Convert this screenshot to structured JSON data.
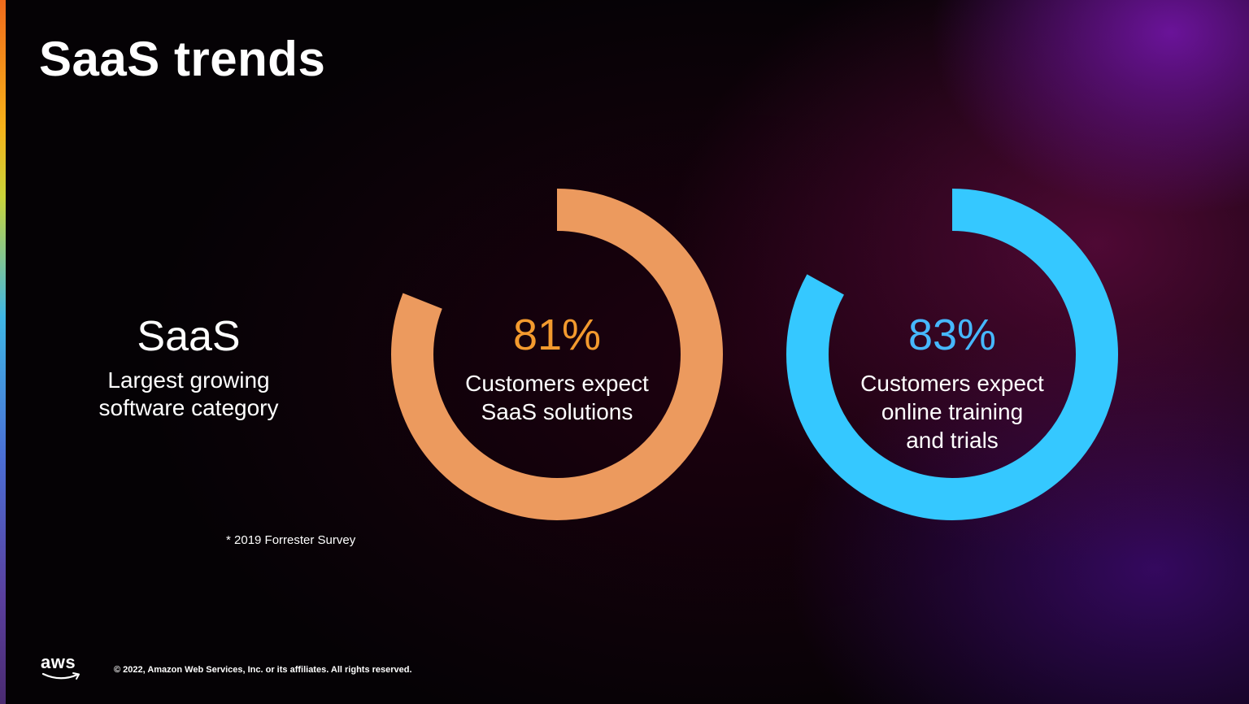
{
  "slide": {
    "title": "SaaS trends",
    "left": {
      "heading": "SaaS",
      "sub_line1": "Largest growing",
      "sub_line2": "software category"
    },
    "footnote": "* 2019 Forrester Survey"
  },
  "colors": {
    "accent_orange": "#ec9a5e",
    "orange_text": "#f39a2e",
    "accent_blue": "#35c8ff",
    "blue_text": "#46b8ff"
  },
  "stats": [
    {
      "value_label": "81%",
      "percent": 81,
      "caption_lines": [
        "Customers expect",
        "SaaS solutions"
      ]
    },
    {
      "value_label": "83%",
      "percent": 83,
      "caption_lines": [
        "Customers expect",
        "online training",
        "and trials"
      ]
    }
  ],
  "footer": {
    "logo_text": "aws",
    "copyright": "© 2022, Amazon Web Services, Inc. or its affiliates. All rights reserved."
  }
}
